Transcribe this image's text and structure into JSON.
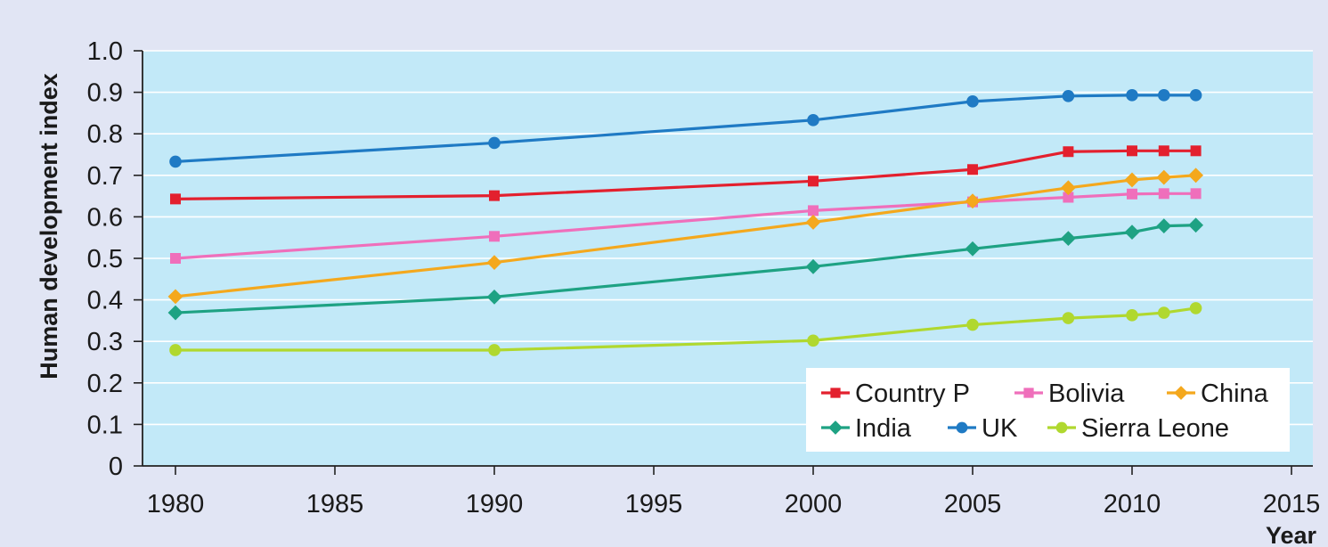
{
  "chart_data": {
    "type": "line",
    "xlabel": "Year",
    "ylabel": "Human development index",
    "xlim": [
      1979,
      2016
    ],
    "ylim": [
      0,
      1.0
    ],
    "x_ticks": [
      "1980",
      "1985",
      "1990",
      "1995",
      "2000",
      "2005",
      "2010",
      "2015"
    ],
    "y_ticks": [
      "0",
      "0.1",
      "0.2",
      "0.3",
      "0.4",
      "0.5",
      "0.6",
      "0.7",
      "0.8",
      "0.9",
      "1.0"
    ],
    "grid": "horizontal",
    "legend_position": "bottom-right",
    "background_color": "#c2e9f8",
    "page_color": "#e1e5f4",
    "series": [
      {
        "name": "Country P",
        "color": "#e3202e",
        "marker": "square",
        "x": [
          1980,
          1990,
          2000,
          2005,
          2008,
          2010,
          2011,
          2012
        ],
        "y": [
          0.643,
          0.651,
          0.686,
          0.714,
          0.757,
          0.759,
          0.759,
          0.759
        ]
      },
      {
        "name": "Bolivia",
        "color": "#ef6fbb",
        "marker": "square",
        "x": [
          1980,
          1990,
          2000,
          2005,
          2008,
          2010,
          2011,
          2012
        ],
        "y": [
          0.5,
          0.553,
          0.615,
          0.636,
          0.647,
          0.655,
          0.656,
          0.656
        ]
      },
      {
        "name": "China",
        "color": "#f4a81d",
        "marker": "diamond",
        "x": [
          1980,
          1990,
          2000,
          2005,
          2008,
          2010,
          2011,
          2012
        ],
        "y": [
          0.408,
          0.49,
          0.587,
          0.638,
          0.67,
          0.689,
          0.695,
          0.7
        ]
      },
      {
        "name": "India",
        "color": "#1ea283",
        "marker": "diamond",
        "x": [
          1980,
          1990,
          2000,
          2005,
          2008,
          2010,
          2011,
          2012
        ],
        "y": [
          0.369,
          0.407,
          0.48,
          0.523,
          0.548,
          0.563,
          0.578,
          0.58
        ]
      },
      {
        "name": "UK",
        "color": "#1f7ac4",
        "marker": "circle",
        "x": [
          1980,
          1990,
          2000,
          2005,
          2008,
          2010,
          2011,
          2012
        ],
        "y": [
          0.733,
          0.778,
          0.833,
          0.878,
          0.891,
          0.893,
          0.893,
          0.893
        ]
      },
      {
        "name": "Sierra Leone",
        "color": "#b0d82f",
        "marker": "circle",
        "x": [
          1980,
          1990,
          2000,
          2005,
          2008,
          2010,
          2011,
          2012
        ],
        "y": [
          0.279,
          0.279,
          0.302,
          0.34,
          0.356,
          0.363,
          0.369,
          0.38
        ]
      }
    ]
  }
}
